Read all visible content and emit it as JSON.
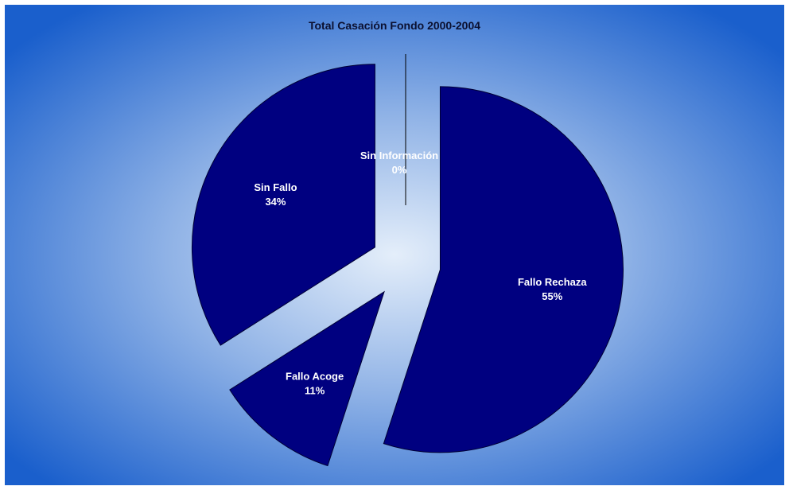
{
  "chart_data": {
    "type": "pie",
    "title": "Total Casación Fondo 2000-2004",
    "slices": [
      {
        "name": "Fallo Rechaza",
        "value": 55,
        "pct_label": "55%",
        "exploded": true
      },
      {
        "name": "Fallo Acoge",
        "value": 11,
        "pct_label": "11%",
        "exploded": true
      },
      {
        "name": "Sin Fallo",
        "value": 34,
        "pct_label": "34%",
        "exploded": true
      },
      {
        "name": "Sin Información",
        "value": 0,
        "pct_label": "0%",
        "exploded": true
      }
    ],
    "legend": "none",
    "colors": {
      "slice_fill": "#000080",
      "slice_stroke": "#000033",
      "label_text": "#ffffff",
      "title_text": "#0b1030",
      "background_center": "#e4eefa",
      "background_edge": "#1a5fcc"
    }
  }
}
